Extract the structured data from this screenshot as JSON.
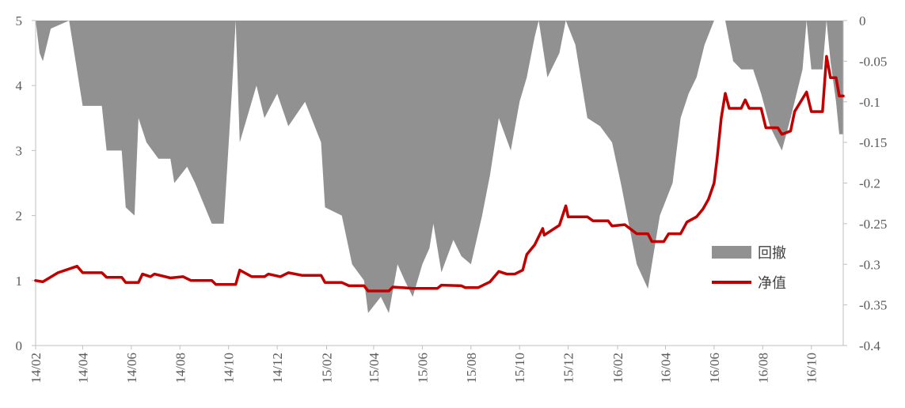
{
  "chart_data": {
    "type": "line+area",
    "title": "",
    "xlabel": "",
    "ylabel": "",
    "x_ticks": [
      "14/02",
      "14/04",
      "14/06",
      "14/08",
      "14/10",
      "14/12",
      "15/02",
      "15/04",
      "15/06",
      "15/08",
      "15/10",
      "15/12",
      "16/02",
      "16/04",
      "16/06",
      "16/08",
      "16/10"
    ],
    "x_range": [
      "2014-02-01",
      "2016-11-10"
    ],
    "y_left": {
      "ticks": [
        0,
        1,
        2,
        3,
        4,
        5
      ],
      "range": [
        0,
        5
      ]
    },
    "y_right": {
      "ticks": [
        "0",
        "-0.05",
        "-0.1",
        "-0.15",
        "-0.2",
        "-0.25",
        "-0.3",
        "-0.35",
        "-0.4"
      ],
      "range": [
        -0.4,
        0
      ]
    },
    "legend": {
      "position": "right",
      "items": [
        {
          "key": "drawdown",
          "label": "回撤"
        },
        {
          "key": "nav",
          "label": "净值"
        }
      ]
    },
    "colors": {
      "drawdown": "#919191",
      "nav": "#c00000",
      "axis": "#bfbfbf",
      "text": "#5a5a5a"
    },
    "series": [
      {
        "key": "nav",
        "name": "净值",
        "axis": "left",
        "type": "line",
        "points": [
          [
            "2014-02-01",
            1.0
          ],
          [
            "2014-02-10",
            0.98
          ],
          [
            "2014-03-01",
            1.12
          ],
          [
            "2014-03-25",
            1.22
          ],
          [
            "2014-04-01",
            1.12
          ],
          [
            "2014-04-25",
            1.12
          ],
          [
            "2014-05-01",
            1.05
          ],
          [
            "2014-05-20",
            1.05
          ],
          [
            "2014-05-25",
            0.97
          ],
          [
            "2014-06-10",
            0.97
          ],
          [
            "2014-06-15",
            1.1
          ],
          [
            "2014-06-25",
            1.06
          ],
          [
            "2014-06-30",
            1.1
          ],
          [
            "2014-07-20",
            1.04
          ],
          [
            "2014-08-05",
            1.06
          ],
          [
            "2014-08-15",
            1.0
          ],
          [
            "2014-09-10",
            1.0
          ],
          [
            "2014-09-15",
            0.94
          ],
          [
            "2014-10-10",
            0.94
          ],
          [
            "2014-10-15",
            1.16
          ],
          [
            "2014-10-30",
            1.06
          ],
          [
            "2014-11-15",
            1.06
          ],
          [
            "2014-11-20",
            1.1
          ],
          [
            "2014-12-05",
            1.06
          ],
          [
            "2014-12-15",
            1.12
          ],
          [
            "2015-01-01",
            1.08
          ],
          [
            "2015-01-25",
            1.08
          ],
          [
            "2015-01-30",
            0.97
          ],
          [
            "2015-02-20",
            0.97
          ],
          [
            "2015-03-01",
            0.92
          ],
          [
            "2015-03-20",
            0.92
          ],
          [
            "2015-03-25",
            0.84
          ],
          [
            "2015-04-20",
            0.84
          ],
          [
            "2015-04-25",
            0.9
          ],
          [
            "2015-05-20",
            0.88
          ],
          [
            "2015-06-20",
            0.88
          ],
          [
            "2015-06-25",
            0.93
          ],
          [
            "2015-07-20",
            0.92
          ],
          [
            "2015-07-25",
            0.89
          ],
          [
            "2015-08-10",
            0.89
          ],
          [
            "2015-08-25",
            0.98
          ],
          [
            "2015-09-05",
            1.14
          ],
          [
            "2015-09-15",
            1.1
          ],
          [
            "2015-09-25",
            1.1
          ],
          [
            "2015-10-05",
            1.16
          ],
          [
            "2015-10-10",
            1.4
          ],
          [
            "2015-10-20",
            1.55
          ],
          [
            "2015-10-30",
            1.8
          ],
          [
            "2015-11-01",
            1.7
          ],
          [
            "2015-11-20",
            1.85
          ],
          [
            "2015-11-28",
            2.15
          ],
          [
            "2015-12-01",
            1.98
          ],
          [
            "2015-12-25",
            1.98
          ],
          [
            "2016-01-01",
            1.92
          ],
          [
            "2016-01-20",
            1.92
          ],
          [
            "2016-01-25",
            1.84
          ],
          [
            "2016-02-10",
            1.86
          ],
          [
            "2016-02-25",
            1.72
          ],
          [
            "2016-03-10",
            1.72
          ],
          [
            "2016-03-15",
            1.6
          ],
          [
            "2016-03-30",
            1.6
          ],
          [
            "2016-04-05",
            1.72
          ],
          [
            "2016-04-10",
            1.72
          ],
          [
            "2016-04-20",
            1.72
          ],
          [
            "2016-04-28",
            1.9
          ],
          [
            "2016-05-10",
            1.98
          ],
          [
            "2016-05-18",
            2.1
          ],
          [
            "2016-05-25",
            2.25
          ],
          [
            "2016-06-01",
            2.5
          ],
          [
            "2016-06-05",
            2.9
          ],
          [
            "2016-06-10",
            3.5
          ],
          [
            "2016-06-15",
            3.88
          ],
          [
            "2016-06-20",
            3.65
          ],
          [
            "2016-07-05",
            3.65
          ],
          [
            "2016-07-10",
            3.78
          ],
          [
            "2016-07-15",
            3.65
          ],
          [
            "2016-07-30",
            3.65
          ],
          [
            "2016-08-05",
            3.35
          ],
          [
            "2016-08-20",
            3.35
          ],
          [
            "2016-08-25",
            3.25
          ],
          [
            "2016-09-05",
            3.3
          ],
          [
            "2016-09-10",
            3.6
          ],
          [
            "2016-09-25",
            3.9
          ],
          [
            "2016-10-01",
            3.6
          ],
          [
            "2016-10-15",
            3.6
          ],
          [
            "2016-10-20",
            4.45
          ],
          [
            "2016-10-25",
            4.12
          ],
          [
            "2016-11-01",
            4.12
          ],
          [
            "2016-11-05",
            3.84
          ],
          [
            "2016-11-10",
            3.84
          ]
        ]
      },
      {
        "key": "drawdown",
        "name": "回撤",
        "axis": "right",
        "type": "area",
        "points": [
          [
            "2014-02-01",
            0
          ],
          [
            "2014-02-06",
            -0.04
          ],
          [
            "2014-02-10",
            -0.05
          ],
          [
            "2014-02-20",
            -0.01
          ],
          [
            "2014-03-15",
            0
          ],
          [
            "2014-04-01",
            -0.105
          ],
          [
            "2014-04-25",
            -0.105
          ],
          [
            "2014-05-01",
            -0.16
          ],
          [
            "2014-05-20",
            -0.16
          ],
          [
            "2014-05-25",
            -0.23
          ],
          [
            "2014-06-05",
            -0.24
          ],
          [
            "2014-06-10",
            -0.12
          ],
          [
            "2014-06-20",
            -0.15
          ],
          [
            "2014-07-05",
            -0.17
          ],
          [
            "2014-07-20",
            -0.17
          ],
          [
            "2014-07-25",
            -0.2
          ],
          [
            "2014-08-10",
            -0.18
          ],
          [
            "2014-08-20",
            -0.2
          ],
          [
            "2014-09-10",
            -0.25
          ],
          [
            "2014-09-25",
            -0.25
          ],
          [
            "2014-10-05",
            -0.09
          ],
          [
            "2014-10-10",
            0
          ],
          [
            "2014-10-15",
            -0.15
          ],
          [
            "2014-11-05",
            -0.08
          ],
          [
            "2014-11-15",
            -0.12
          ],
          [
            "2014-12-01",
            -0.09
          ],
          [
            "2014-12-15",
            -0.13
          ],
          [
            "2015-01-05",
            -0.1
          ],
          [
            "2015-01-25",
            -0.15
          ],
          [
            "2015-01-30",
            -0.23
          ],
          [
            "2015-02-20",
            -0.24
          ],
          [
            "2015-03-05",
            -0.3
          ],
          [
            "2015-03-20",
            -0.32
          ],
          [
            "2015-03-25",
            -0.36
          ],
          [
            "2015-04-10",
            -0.34
          ],
          [
            "2015-04-20",
            -0.36
          ],
          [
            "2015-05-01",
            -0.3
          ],
          [
            "2015-05-10",
            -0.32
          ],
          [
            "2015-05-20",
            -0.34
          ],
          [
            "2015-06-01",
            -0.3
          ],
          [
            "2015-06-10",
            -0.28
          ],
          [
            "2015-06-15",
            -0.25
          ],
          [
            "2015-06-25",
            -0.31
          ],
          [
            "2015-07-10",
            -0.27
          ],
          [
            "2015-07-20",
            -0.29
          ],
          [
            "2015-08-01",
            -0.3
          ],
          [
            "2015-08-15",
            -0.24
          ],
          [
            "2015-08-25",
            -0.19
          ],
          [
            "2015-09-05",
            -0.12
          ],
          [
            "2015-09-20",
            -0.16
          ],
          [
            "2015-10-01",
            -0.1
          ],
          [
            "2015-10-10",
            -0.07
          ],
          [
            "2015-10-20",
            -0.02
          ],
          [
            "2015-10-25",
            0
          ],
          [
            "2015-11-05",
            -0.07
          ],
          [
            "2015-11-20",
            -0.04
          ],
          [
            "2015-11-28",
            0
          ],
          [
            "2015-12-10",
            -0.03
          ],
          [
            "2015-12-25",
            -0.12
          ],
          [
            "2016-01-10",
            -0.13
          ],
          [
            "2016-01-25",
            -0.15
          ],
          [
            "2016-02-05",
            -0.2
          ],
          [
            "2016-02-15",
            -0.25
          ],
          [
            "2016-02-25",
            -0.3
          ],
          [
            "2016-03-10",
            -0.33
          ],
          [
            "2016-03-15",
            -0.3
          ],
          [
            "2016-03-25",
            -0.24
          ],
          [
            "2016-04-10",
            -0.2
          ],
          [
            "2016-04-20",
            -0.12
          ],
          [
            "2016-04-30",
            -0.09
          ],
          [
            "2016-05-10",
            -0.07
          ],
          [
            "2016-05-20",
            -0.03
          ],
          [
            "2016-06-01",
            0
          ],
          [
            "2016-06-15",
            0
          ],
          [
            "2016-06-25",
            -0.05
          ],
          [
            "2016-07-05",
            -0.06
          ],
          [
            "2016-07-20",
            -0.06
          ],
          [
            "2016-07-30",
            -0.09
          ],
          [
            "2016-08-10",
            -0.13
          ],
          [
            "2016-08-20",
            -0.15
          ],
          [
            "2016-08-25",
            -0.16
          ],
          [
            "2016-09-05",
            -0.12
          ],
          [
            "2016-09-20",
            -0.06
          ],
          [
            "2016-09-25",
            0
          ],
          [
            "2016-10-01",
            -0.06
          ],
          [
            "2016-10-15",
            -0.06
          ],
          [
            "2016-10-20",
            0
          ],
          [
            "2016-10-25",
            -0.05
          ],
          [
            "2016-11-01",
            -0.1
          ],
          [
            "2016-11-05",
            -0.14
          ],
          [
            "2016-11-10",
            -0.14
          ]
        ]
      }
    ]
  }
}
